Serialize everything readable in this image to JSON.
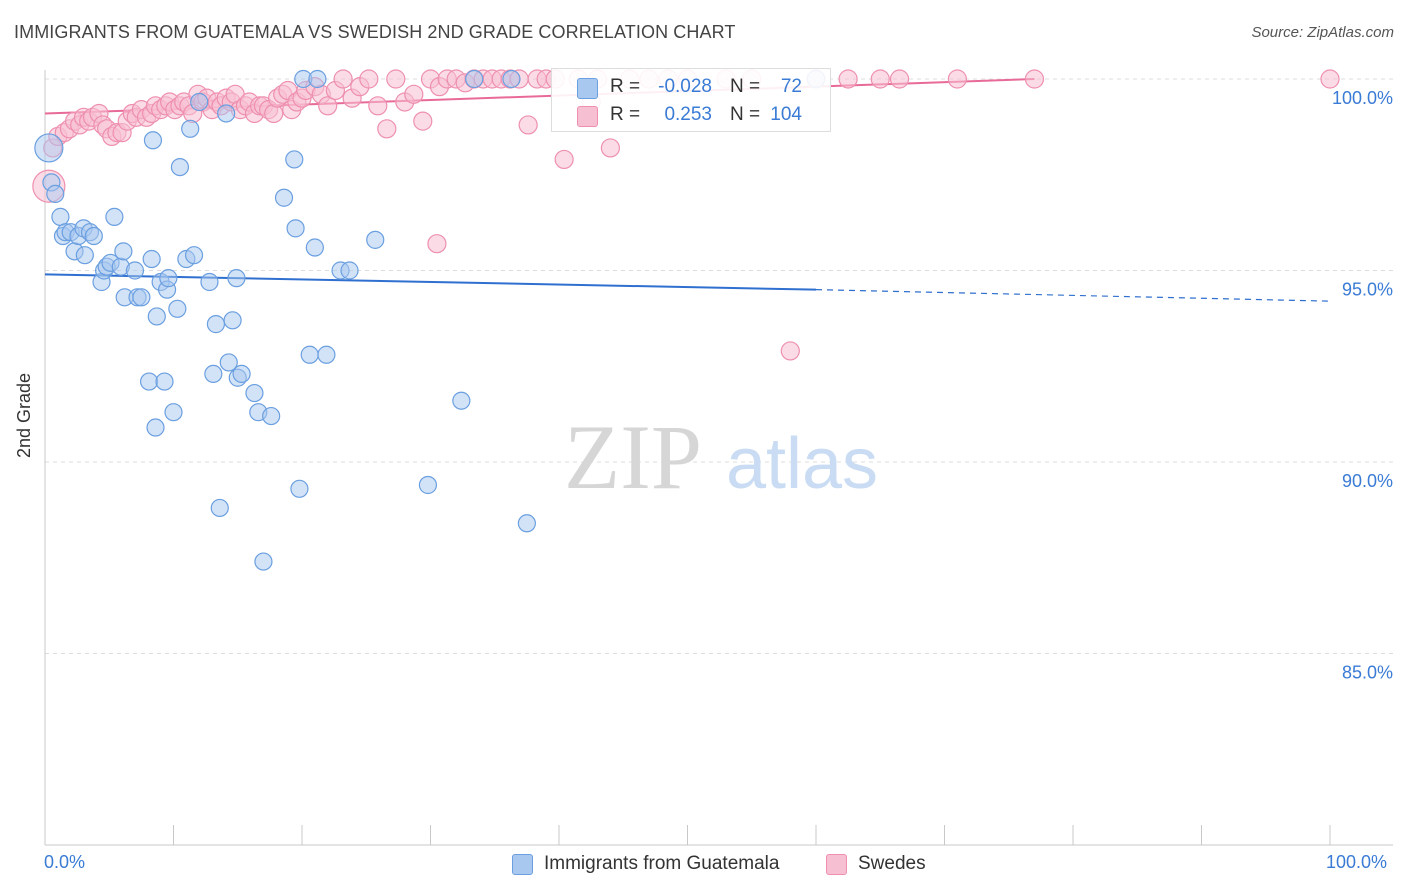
{
  "title": "IMMIGRANTS FROM GUATEMALA VS SWEDISH 2ND GRADE CORRELATION CHART",
  "source": "Source: ZipAtlas.com",
  "watermark": {
    "zip": "ZIP",
    "atlas": "atlas"
  },
  "legend": {
    "rows": [
      {
        "r_label": "R =",
        "r_value": "-0.028",
        "n_label": "N =",
        "n_value": "72"
      },
      {
        "r_label": "R =",
        "r_value": "0.253",
        "n_label": "N =",
        "n_value": "104"
      }
    ]
  },
  "bottom_legend": {
    "series1": "Immigrants from Guatemala",
    "series2": "Swedes"
  },
  "colors": {
    "blue_fill": "#a8c8f0",
    "blue_stroke": "#6a9fe0",
    "blue_line": "#2f6fcf",
    "pink_fill": "#f7bfd2",
    "pink_stroke": "#ee8fb0",
    "pink_line": "#e86a98",
    "axis_text": "#3a7bd5"
  },
  "chart_data": {
    "type": "scatter",
    "title": "IMMIGRANTS FROM GUATEMALA VS SWEDISH 2ND GRADE CORRELATION CHART",
    "xlabel": "",
    "ylabel": "2nd Grade",
    "xlim": [
      0,
      100
    ],
    "ylim": [
      80,
      100.5
    ],
    "x_tick_labels": [
      "0.0%",
      "100.0%"
    ],
    "y_ticks": [
      85,
      90,
      95,
      100
    ],
    "y_tick_labels": [
      "85.0%",
      "90.0%",
      "95.0%",
      "100.0%"
    ],
    "grid": true,
    "series": [
      {
        "name": "Immigrants from Guatemala",
        "r": -0.028,
        "n": 72,
        "trend": {
          "x0": 0,
          "y0": 94.9,
          "x1": 60,
          "y1": 94.5,
          "dash_to_x": 100,
          "dash_to_y": 94.2
        },
        "points": [
          [
            0.3,
            98.2
          ],
          [
            0.5,
            97.3
          ],
          [
            0.8,
            97.0
          ],
          [
            1.2,
            96.4
          ],
          [
            1.4,
            95.9
          ],
          [
            1.6,
            96.0
          ],
          [
            2.0,
            96.0
          ],
          [
            2.3,
            95.5
          ],
          [
            2.6,
            95.9
          ],
          [
            3.0,
            96.1
          ],
          [
            3.1,
            95.4
          ],
          [
            3.5,
            96.0
          ],
          [
            3.8,
            95.9
          ],
          [
            4.4,
            94.7
          ],
          [
            4.6,
            95.0
          ],
          [
            4.8,
            95.1
          ],
          [
            5.1,
            95.2
          ],
          [
            5.4,
            96.4
          ],
          [
            5.9,
            95.1
          ],
          [
            6.1,
            95.5
          ],
          [
            6.2,
            94.3
          ],
          [
            7.0,
            95.0
          ],
          [
            7.2,
            94.3
          ],
          [
            7.5,
            94.3
          ],
          [
            8.1,
            92.1
          ],
          [
            8.3,
            95.3
          ],
          [
            8.4,
            98.4
          ],
          [
            8.6,
            90.9
          ],
          [
            8.7,
            93.8
          ],
          [
            9.0,
            94.7
          ],
          [
            9.3,
            92.1
          ],
          [
            9.5,
            94.5
          ],
          [
            9.6,
            94.8
          ],
          [
            10.0,
            91.3
          ],
          [
            10.3,
            94.0
          ],
          [
            10.5,
            97.7
          ],
          [
            11.0,
            95.3
          ],
          [
            11.3,
            98.7
          ],
          [
            11.6,
            95.4
          ],
          [
            12.0,
            99.4
          ],
          [
            12.8,
            94.7
          ],
          [
            13.1,
            92.3
          ],
          [
            13.3,
            93.6
          ],
          [
            13.6,
            88.8
          ],
          [
            14.1,
            99.1
          ],
          [
            14.3,
            92.6
          ],
          [
            14.6,
            93.7
          ],
          [
            14.9,
            94.8
          ],
          [
            15.0,
            92.2
          ],
          [
            15.3,
            92.3
          ],
          [
            16.3,
            91.8
          ],
          [
            16.6,
            91.3
          ],
          [
            17.0,
            87.4
          ],
          [
            17.6,
            91.2
          ],
          [
            18.6,
            96.9
          ],
          [
            19.4,
            97.9
          ],
          [
            19.5,
            96.1
          ],
          [
            19.8,
            89.3
          ],
          [
            20.1,
            100.0
          ],
          [
            20.6,
            92.8
          ],
          [
            21.0,
            95.6
          ],
          [
            21.2,
            100.0
          ],
          [
            21.9,
            92.8
          ],
          [
            23.0,
            95.0
          ],
          [
            23.7,
            95.0
          ],
          [
            25.7,
            95.8
          ],
          [
            29.8,
            89.4
          ],
          [
            32.4,
            91.6
          ],
          [
            33.4,
            100.0
          ],
          [
            36.3,
            100.0
          ],
          [
            37.5,
            88.4
          ],
          [
            60.0,
            100.0
          ]
        ]
      },
      {
        "name": "Swedes",
        "r": 0.253,
        "n": 104,
        "trend": {
          "x0": 0,
          "y0": 99.1,
          "x1": 77,
          "y1": 100.0
        },
        "points": [
          [
            0.3,
            97.2
          ],
          [
            0.6,
            98.2
          ],
          [
            1.0,
            98.5
          ],
          [
            1.5,
            98.6
          ],
          [
            1.9,
            98.7
          ],
          [
            2.3,
            98.9
          ],
          [
            2.7,
            98.8
          ],
          [
            3.0,
            99.0
          ],
          [
            3.4,
            98.9
          ],
          [
            3.7,
            99.0
          ],
          [
            4.2,
            99.1
          ],
          [
            4.5,
            98.8
          ],
          [
            4.8,
            98.7
          ],
          [
            5.2,
            98.5
          ],
          [
            5.6,
            98.6
          ],
          [
            6.0,
            98.6
          ],
          [
            6.4,
            98.9
          ],
          [
            6.8,
            99.1
          ],
          [
            7.1,
            99.0
          ],
          [
            7.5,
            99.2
          ],
          [
            7.9,
            99.0
          ],
          [
            8.3,
            99.1
          ],
          [
            8.6,
            99.3
          ],
          [
            9.0,
            99.2
          ],
          [
            9.4,
            99.3
          ],
          [
            9.7,
            99.4
          ],
          [
            10.1,
            99.2
          ],
          [
            10.5,
            99.3
          ],
          [
            10.8,
            99.4
          ],
          [
            11.2,
            99.3
          ],
          [
            11.5,
            99.1
          ],
          [
            11.9,
            99.6
          ],
          [
            12.3,
            99.4
          ],
          [
            12.6,
            99.5
          ],
          [
            13.0,
            99.2
          ],
          [
            13.4,
            99.4
          ],
          [
            13.7,
            99.3
          ],
          [
            14.1,
            99.5
          ],
          [
            14.5,
            99.4
          ],
          [
            14.8,
            99.6
          ],
          [
            15.2,
            99.2
          ],
          [
            15.6,
            99.3
          ],
          [
            15.9,
            99.4
          ],
          [
            16.3,
            99.1
          ],
          [
            16.7,
            99.3
          ],
          [
            17.0,
            99.3
          ],
          [
            17.4,
            99.2
          ],
          [
            17.8,
            99.1
          ],
          [
            18.1,
            99.5
          ],
          [
            18.5,
            99.6
          ],
          [
            18.9,
            99.7
          ],
          [
            19.2,
            99.2
          ],
          [
            19.6,
            99.4
          ],
          [
            20.0,
            99.5
          ],
          [
            20.3,
            99.7
          ],
          [
            21.0,
            99.8
          ],
          [
            21.5,
            99.6
          ],
          [
            22.0,
            99.3
          ],
          [
            22.6,
            99.7
          ],
          [
            23.2,
            100.0
          ],
          [
            23.9,
            99.5
          ],
          [
            24.5,
            99.8
          ],
          [
            25.2,
            100.0
          ],
          [
            25.9,
            99.3
          ],
          [
            26.6,
            98.7
          ],
          [
            27.3,
            100.0
          ],
          [
            28.0,
            99.4
          ],
          [
            28.7,
            99.6
          ],
          [
            29.4,
            98.9
          ],
          [
            30.0,
            100.0
          ],
          [
            30.7,
            99.8
          ],
          [
            31.3,
            100.0
          ],
          [
            32.0,
            100.0
          ],
          [
            32.7,
            99.9
          ],
          [
            33.4,
            100.0
          ],
          [
            34.1,
            100.0
          ],
          [
            34.8,
            100.0
          ],
          [
            35.5,
            100.0
          ],
          [
            36.2,
            100.0
          ],
          [
            36.9,
            100.0
          ],
          [
            37.6,
            98.8
          ],
          [
            38.3,
            100.0
          ],
          [
            39.0,
            100.0
          ],
          [
            39.7,
            100.0
          ],
          [
            40.4,
            97.9
          ],
          [
            41.5,
            100.0
          ],
          [
            42.5,
            99.4
          ],
          [
            43.0,
            100.0
          ],
          [
            44.0,
            98.2
          ],
          [
            45.5,
            100.0
          ],
          [
            47.0,
            100.0
          ],
          [
            48.5,
            100.0
          ],
          [
            50.0,
            100.0
          ],
          [
            53.0,
            100.0
          ],
          [
            55.0,
            100.0
          ],
          [
            58.0,
            92.9
          ],
          [
            60.0,
            100.0
          ],
          [
            62.5,
            100.0
          ],
          [
            65.0,
            100.0
          ],
          [
            66.5,
            100.0
          ],
          [
            71.0,
            100.0
          ],
          [
            77.0,
            100.0
          ],
          [
            100.0,
            100.0
          ],
          [
            30.5,
            95.7
          ]
        ]
      }
    ]
  }
}
